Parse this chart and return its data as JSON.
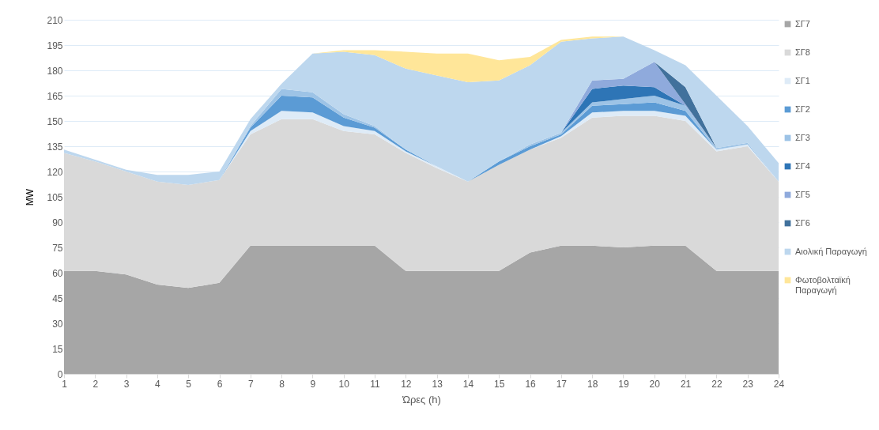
{
  "chart_data": {
    "type": "area",
    "stacked": true,
    "xlabel": "Ώρες (h)",
    "ylabel": "MW",
    "x": [
      1,
      2,
      3,
      4,
      5,
      6,
      7,
      8,
      9,
      10,
      11,
      12,
      13,
      14,
      15,
      16,
      17,
      18,
      19,
      20,
      21,
      22,
      23,
      24
    ],
    "xlim": [
      1,
      24
    ],
    "xticks": [
      1,
      2,
      3,
      4,
      5,
      6,
      7,
      8,
      9,
      10,
      11,
      12,
      13,
      14,
      15,
      16,
      17,
      18,
      19,
      20,
      21,
      22,
      23,
      24
    ],
    "ylim": [
      0,
      210
    ],
    "yticks": [
      0,
      15,
      30,
      45,
      60,
      75,
      90,
      105,
      120,
      135,
      150,
      165,
      180,
      195,
      210
    ],
    "grid": "y",
    "legend": "right",
    "series": [
      {
        "name": "ΣΓ7",
        "color": "#a6a6a6",
        "values": [
          61,
          61,
          59,
          53,
          51,
          54,
          76,
          76,
          76,
          76,
          76,
          61,
          61,
          61,
          61,
          72,
          76,
          76,
          75,
          76,
          76,
          61,
          61,
          61
        ]
      },
      {
        "name": "ΣΓ8",
        "color": "#d9d9d9",
        "values": [
          70,
          65,
          61,
          61,
          61,
          61,
          66,
          75,
          75,
          68,
          66,
          70,
          61,
          53,
          63,
          61,
          64,
          76,
          78,
          77,
          74,
          71,
          74,
          53
        ]
      },
      {
        "name": "ΣΓ1",
        "color": "#deebf7",
        "values": [
          0,
          0,
          0,
          0,
          0,
          0,
          2,
          5,
          4,
          3,
          2,
          1,
          1,
          0,
          0,
          0,
          1,
          3,
          3,
          3,
          3,
          1,
          1,
          0
        ]
      },
      {
        "name": "ΣΓ2",
        "color": "#5b9bd5",
        "values": [
          0,
          0,
          0,
          0,
          0,
          0,
          2,
          9,
          9,
          5,
          2,
          1,
          0,
          0,
          2,
          2,
          1,
          4,
          4,
          5,
          3,
          0,
          0,
          0
        ]
      },
      {
        "name": "ΣΓ3",
        "color": "#9dc3e6",
        "values": [
          0,
          0,
          0,
          0,
          0,
          0,
          1,
          4,
          3,
          2,
          1,
          0,
          0,
          0,
          0,
          1,
          1,
          2,
          3,
          4,
          3,
          1,
          1,
          0
        ]
      },
      {
        "name": "ΣΓ4",
        "color": "#2e75b6",
        "values": [
          0,
          0,
          0,
          0,
          0,
          0,
          0,
          0,
          0,
          0,
          0,
          0,
          0,
          0,
          0,
          0,
          0,
          8,
          8,
          5,
          0,
          0,
          0,
          0
        ]
      },
      {
        "name": "ΣΓ5",
        "color": "#8faadc",
        "values": [
          0,
          0,
          0,
          0,
          0,
          0,
          0,
          0,
          0,
          0,
          0,
          0,
          0,
          0,
          0,
          0,
          0,
          5,
          4,
          15,
          1,
          0,
          0,
          0
        ]
      },
      {
        "name": "ΣΓ6",
        "color": "#41719c",
        "values": [
          null,
          null,
          null,
          null,
          null,
          null,
          null,
          null,
          null,
          null,
          null,
          null,
          null,
          null,
          null,
          null,
          null,
          null,
          null,
          0,
          10,
          0,
          null,
          null
        ]
      },
      {
        "name": "Αιολική Παραγωγή",
        "color": "#bdd7ee",
        "values": [
          2,
          1,
          1,
          4,
          6,
          5,
          4,
          3,
          23,
          37,
          42,
          48,
          54,
          59,
          48,
          47,
          54,
          25,
          25,
          7,
          13,
          31,
          10,
          11
        ]
      },
      {
        "name": "Φωτοβολταϊκή Παραγωγή",
        "color": "#ffe699",
        "values": [
          0,
          0,
          0,
          0,
          0,
          0,
          0,
          0,
          0,
          1,
          3,
          10,
          13,
          17,
          12,
          5,
          1,
          1,
          0,
          0,
          0,
          0,
          0,
          0
        ]
      }
    ]
  }
}
